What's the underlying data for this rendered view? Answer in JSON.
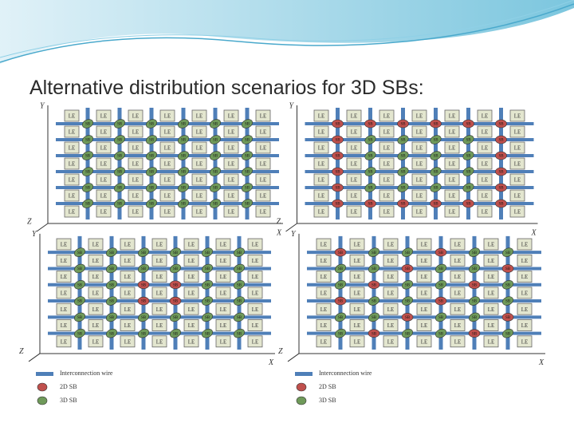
{
  "title": "Alternative distribution scenarios for 3D SBs:",
  "block_label": "LE",
  "switch_label": "SB",
  "panels": [
    {
      "axes": {
        "y": "Y",
        "z": "Z",
        "x": "X"
      }
    },
    {
      "axes": {
        "y": "Y",
        "z": "Z",
        "x": "X"
      }
    },
    {
      "axes": {
        "y": "Y",
        "z": "Z",
        "x": "X"
      }
    },
    {
      "axes": {
        "y": "Y",
        "z": "Z",
        "x": "X"
      }
    }
  ],
  "legends": [
    {
      "wire": "Interconnection wire",
      "sb_2d": "2D SB",
      "sb_3d": "3D SB"
    },
    {
      "wire": "Interconnection wire",
      "sb_2d": "2D SB",
      "sb_3d": "3D SB"
    }
  ]
}
